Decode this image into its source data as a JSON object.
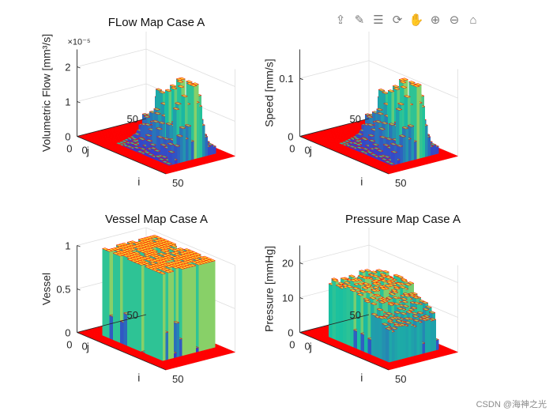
{
  "toolbar": [
    {
      "name": "export-icon",
      "glyph": "⇪"
    },
    {
      "name": "brush-icon",
      "glyph": "✎"
    },
    {
      "name": "legend-icon",
      "glyph": "☰"
    },
    {
      "name": "rotate-icon",
      "glyph": "⟳"
    },
    {
      "name": "pan-icon",
      "glyph": "✋"
    },
    {
      "name": "zoom-in-icon",
      "glyph": "⊕"
    },
    {
      "name": "zoom-out-icon",
      "glyph": "⊖"
    },
    {
      "name": "home-icon",
      "glyph": "⌂"
    }
  ],
  "watermark": "CSDN @海神之光",
  "colors": {
    "edge": "#ff0000",
    "low": "#3a2fd0",
    "mid": "#18c0a0",
    "high": "#f8e030",
    "axis": "#262626",
    "grid": "#dedede"
  },
  "chart_data": [
    {
      "type": "surface3d",
      "title": "FLow Map Case A",
      "xlabel": "i",
      "ylabel": "j",
      "zlabel": "Volumetric Flow [mm³/s]",
      "xlim": [
        0,
        50
      ],
      "ylim": [
        0,
        50
      ],
      "zlim": [
        0,
        2.5
      ],
      "z_ticks": [
        "0",
        "1",
        "2"
      ],
      "z_tick_values": [
        0,
        1,
        2
      ],
      "z_exponent": "×10⁻⁵",
      "x_tick_labels": [
        "0",
        "50"
      ],
      "y_tick_labels": [
        "50",
        "0"
      ],
      "grid": true,
      "profile": "flow",
      "peak": 2.1
    },
    {
      "type": "surface3d",
      "title": "",
      "xlabel": "i",
      "ylabel": "j",
      "zlabel": "Speed [mm/s]",
      "xlim": [
        0,
        50
      ],
      "ylim": [
        0,
        50
      ],
      "zlim": [
        0,
        0.15
      ],
      "z_ticks": [
        "0",
        "0.1"
      ],
      "z_tick_values": [
        0,
        0.1
      ],
      "z_exponent": "",
      "x_tick_labels": [
        "0",
        "50"
      ],
      "y_tick_labels": [
        "50",
        "0"
      ],
      "grid": true,
      "profile": "flow",
      "peak": 0.125
    },
    {
      "type": "surface3d",
      "title": "Vessel Map Case A",
      "xlabel": "i",
      "ylabel": "j",
      "zlabel": "Vessel",
      "xlim": [
        0,
        50
      ],
      "ylim": [
        0,
        50
      ],
      "zlim": [
        0,
        1
      ],
      "z_ticks": [
        "0",
        "0.5",
        "1"
      ],
      "z_tick_values": [
        0,
        0.5,
        1
      ],
      "z_exponent": "",
      "x_tick_labels": [
        "0",
        "50"
      ],
      "y_tick_labels": [
        "50",
        "0"
      ],
      "grid": true,
      "profile": "vessel",
      "peak": 1
    },
    {
      "type": "surface3d",
      "title": "Pressure Map Case A",
      "xlabel": "i",
      "ylabel": "j",
      "zlabel": "Pressure [mmHg]",
      "xlim": [
        0,
        50
      ],
      "ylim": [
        0,
        50
      ],
      "zlim": [
        0,
        25
      ],
      "z_ticks": [
        "0",
        "10",
        "20"
      ],
      "z_tick_values": [
        0,
        10,
        20
      ],
      "z_exponent": "",
      "x_tick_labels": [
        "0",
        "50"
      ],
      "y_tick_labels": [
        "50",
        "0"
      ],
      "grid": true,
      "profile": "pressure",
      "peak": 17
    }
  ]
}
